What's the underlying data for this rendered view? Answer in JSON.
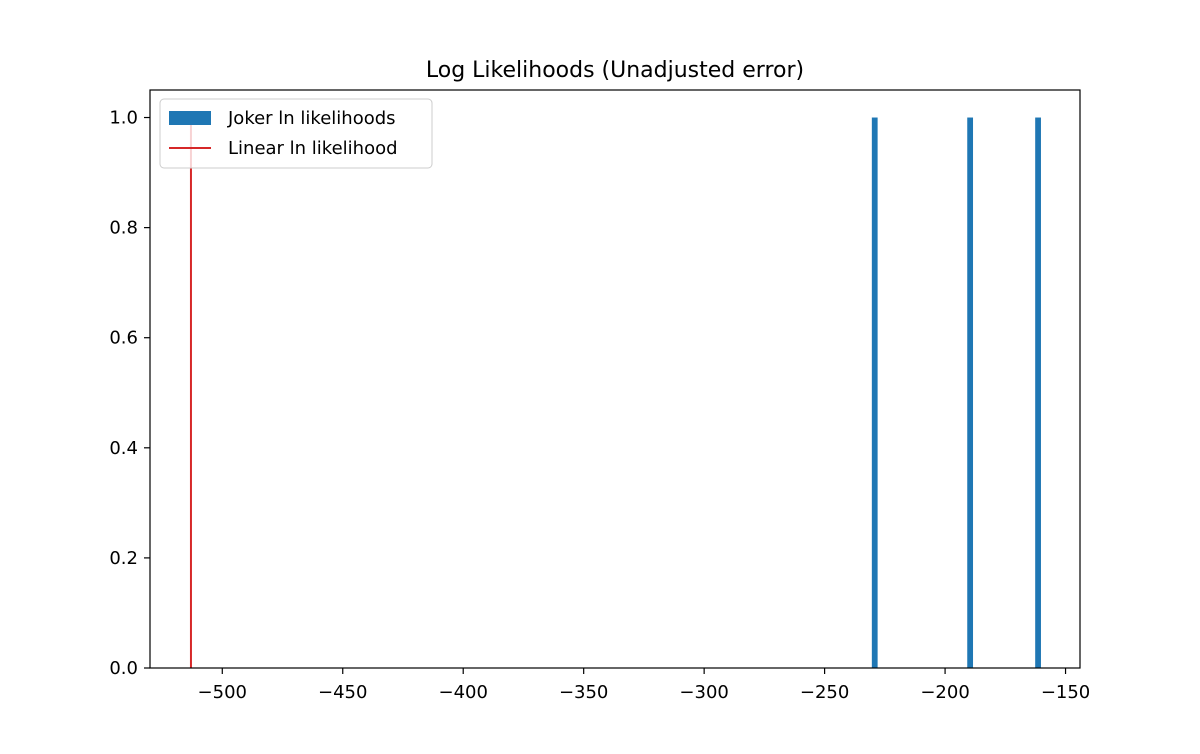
{
  "chart_data": {
    "type": "bar",
    "title": "Log Likelihoods (Unadjusted error)",
    "xlabel": "",
    "ylabel": "",
    "xlim": [
      -530,
      -144
    ],
    "ylim": [
      0,
      1.05
    ],
    "x_ticks": [
      -500,
      -450,
      -400,
      -350,
      -300,
      -250,
      -200,
      -150
    ],
    "x_tick_labels": [
      "−500",
      "−450",
      "−400",
      "−350",
      "−300",
      "−250",
      "−200",
      "−150"
    ],
    "y_ticks": [
      0.0,
      0.2,
      0.4,
      0.6,
      0.8,
      1.0
    ],
    "y_tick_labels": [
      "0.0",
      "0.2",
      "0.4",
      "0.6",
      "0.8",
      "1.0"
    ],
    "grid": false,
    "legend_position": "upper-left",
    "series": [
      {
        "name": "Joker ln likelihoods",
        "kind": "histogram",
        "color": "#1f77b4",
        "bins": [
          {
            "x0": -230.4,
            "x1": -228.0,
            "count": 1
          },
          {
            "x0": -190.8,
            "x1": -188.4,
            "count": 1
          },
          {
            "x0": -162.6,
            "x1": -160.2,
            "count": 1
          }
        ]
      },
      {
        "name": "Linear ln likelihood",
        "kind": "vline",
        "color": "#d62728",
        "x": -513,
        "y_range": [
          0,
          1
        ]
      }
    ]
  }
}
